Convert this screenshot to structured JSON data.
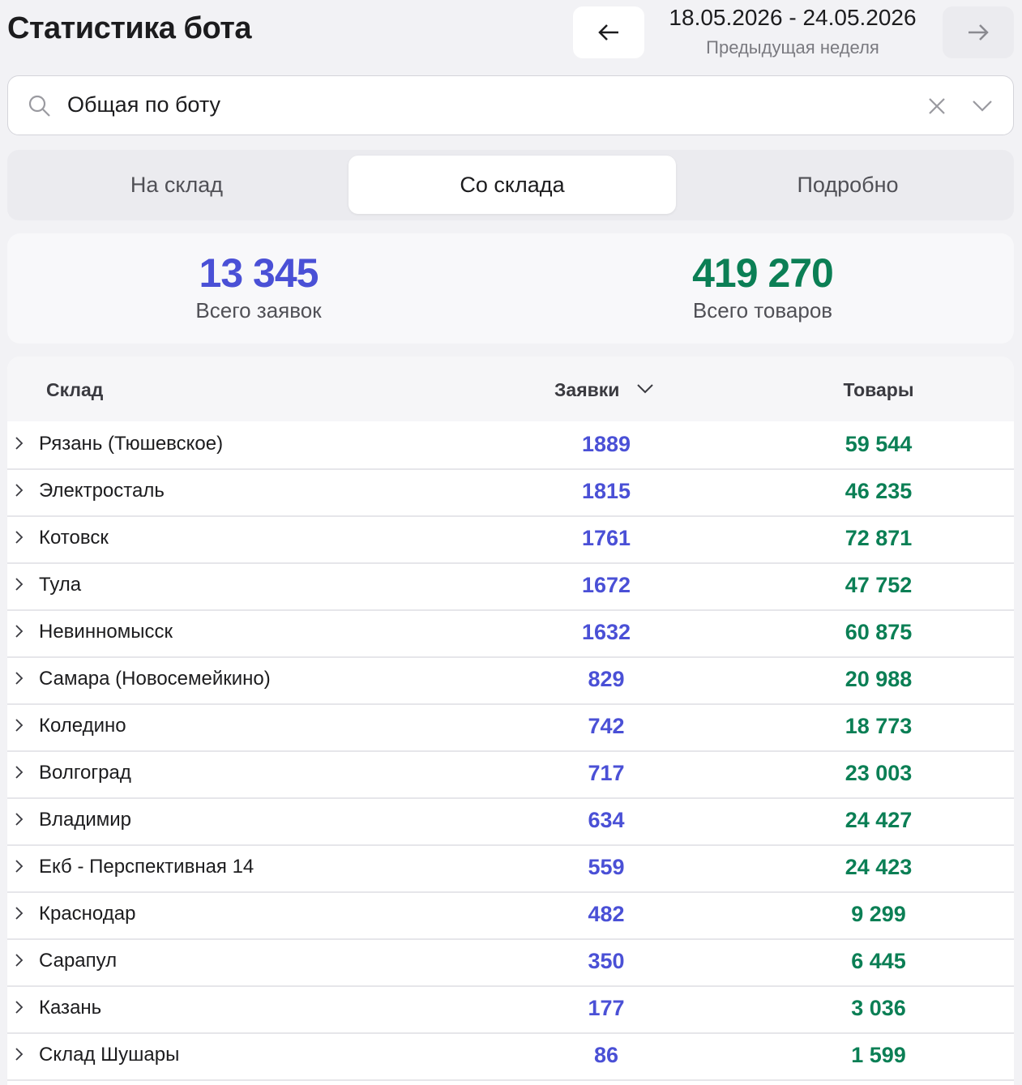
{
  "header": {
    "title": "Статистика бота",
    "date_range": "18.05.2026 - 24.05.2026",
    "period_label": "Предыдущая неделя"
  },
  "search": {
    "value": "Общая по боту"
  },
  "tabs": {
    "items": [
      "На склад",
      "Со склада",
      "Подробно"
    ],
    "active": 1
  },
  "summary": [
    {
      "value": "13 345",
      "label": "Всего заявок",
      "color": "#4a50d6"
    },
    {
      "value": "419 270",
      "label": "Всего товаров",
      "color": "#0b7f55"
    }
  ],
  "table": {
    "columns": [
      "Склад",
      "Заявки",
      "Товары"
    ],
    "rows": [
      [
        "Рязань (Тюшевское)",
        "1889",
        "59 544"
      ],
      [
        "Электросталь",
        "1815",
        "46 235"
      ],
      [
        "Котовск",
        "1761",
        "72 871"
      ],
      [
        "Тула",
        "1672",
        "47 752"
      ],
      [
        "Невинномысск",
        "1632",
        "60 875"
      ],
      [
        "Самара (Новосемейкино)",
        "829",
        "20 988"
      ],
      [
        "Коледино",
        "742",
        "18 773"
      ],
      [
        "Волгоград",
        "717",
        "23 003"
      ],
      [
        "Владимир",
        "634",
        "24 427"
      ],
      [
        "Екб - Перспективная 14",
        "559",
        "24 423"
      ],
      [
        "Краснодар",
        "482",
        "9 299"
      ],
      [
        "Сарапул",
        "350",
        "6 445"
      ],
      [
        "Казань",
        "177",
        "3 036"
      ],
      [
        "Склад Шушары",
        "86",
        "1 599"
      ]
    ]
  }
}
